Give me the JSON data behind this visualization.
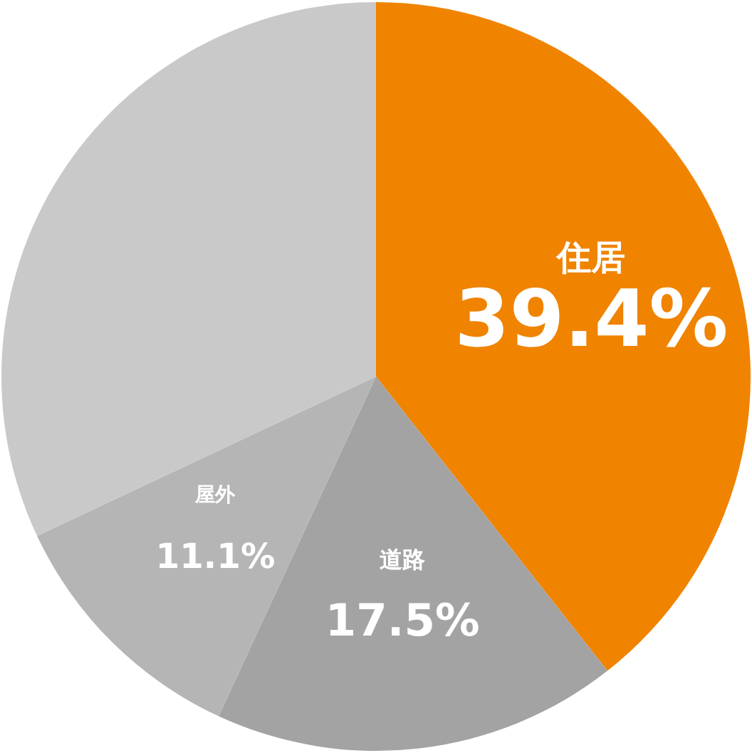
{
  "chart_data": {
    "type": "pie",
    "categories": [
      "住居",
      "道路",
      "屋外",
      null
    ],
    "values": [
      39.4,
      17.5,
      11.1,
      32.0
    ],
    "value_labels": [
      "39.4%",
      "17.5%",
      "11.1%",
      null
    ],
    "colors": [
      "#f08300",
      "#a3a3a3",
      "#b5b5b5",
      "#c9c9c9"
    ]
  }
}
